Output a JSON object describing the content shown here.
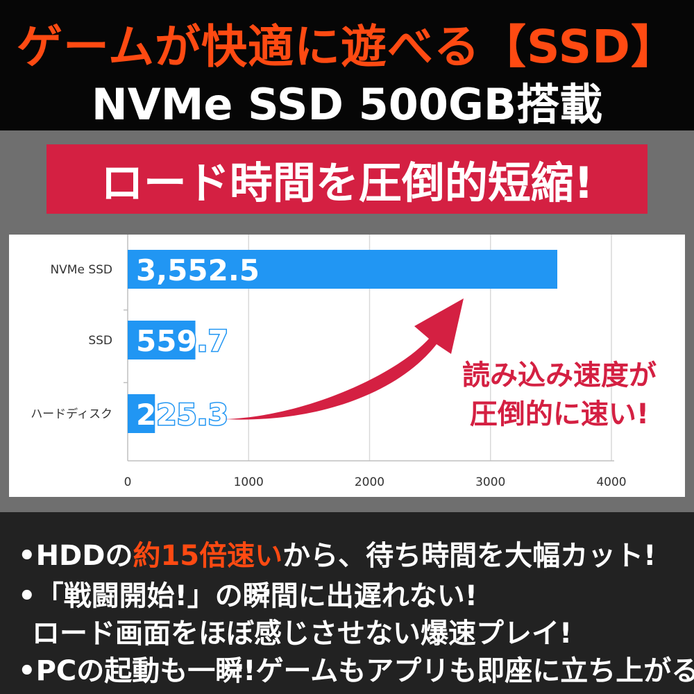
{
  "header": {
    "headline": "ゲームが快適に遊べる【SSD】",
    "subheadline": "NVMe SSD 500GB搭載"
  },
  "banner": {
    "text": "ロード時間を圧倒的短縮!"
  },
  "chart_data": {
    "type": "bar",
    "orientation": "horizontal",
    "categories": [
      "NVMe SSD",
      "SSD",
      "ハードディスク"
    ],
    "values": [
      3552.5,
      559.7,
      225.3
    ],
    "value_labels": [
      "3,552.5",
      "559.7",
      "225.3"
    ],
    "xlim": [
      0,
      4000
    ],
    "x_ticks": [
      "0",
      "1000",
      "2000",
      "3000",
      "4000"
    ],
    "grid": true,
    "bar_color": "#2196f3",
    "callout": [
      "読み込み速度が",
      "圧倒的に速い!"
    ],
    "callout_color": "#d42042",
    "arrow_color": "#d42042"
  },
  "bullets": {
    "line1": {
      "prefix": "•HDDの",
      "highlight": "約15倍速い",
      "suffix": "から、待ち時間を大幅カット!"
    },
    "line2": "•「戦闘開始!」の瞬間に出遅れない!",
    "line3": "ロード画面をほぼ感じさせない爆速プレイ!",
    "line4": "•PCの起動も一瞬!ゲームもアプリも即座に立ち上がる!"
  },
  "colors": {
    "accent_orange": "#ff4a12",
    "accent_red": "#d42042",
    "dark": "#060606",
    "panel_gray": "#6f6f6f"
  }
}
